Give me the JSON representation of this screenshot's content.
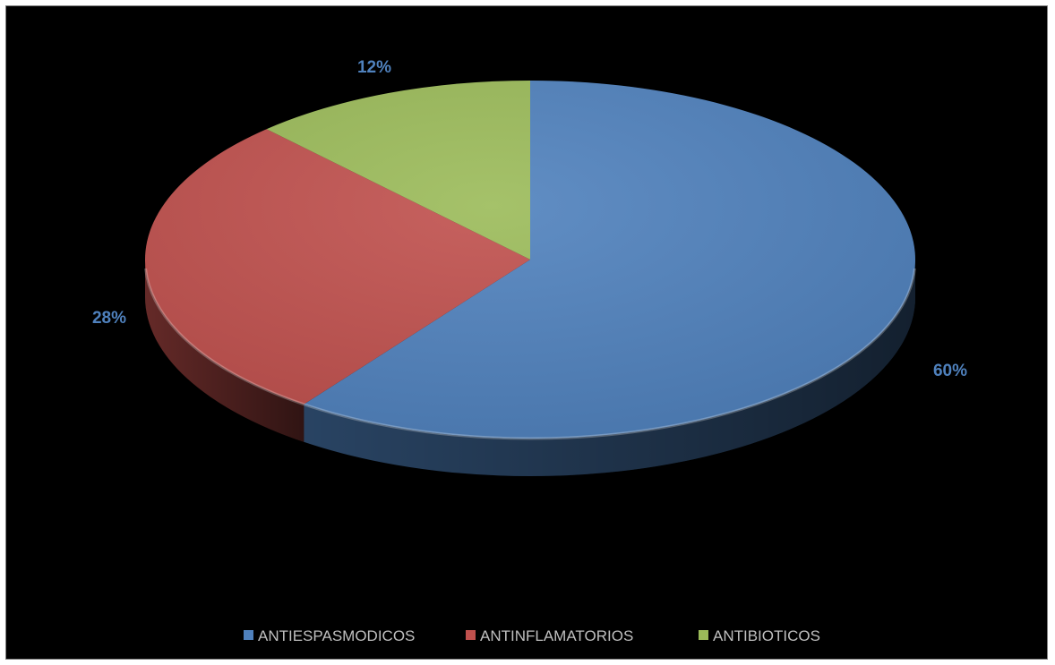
{
  "chart_data": {
    "type": "pie",
    "style": "3d-pie",
    "categories": [
      "ANTIESPASMODICOS",
      "ANTINFLAMATORIOS",
      "ANTIBIOTICOS"
    ],
    "values": [
      60,
      28,
      12
    ],
    "data_labels": [
      "60%",
      "28%",
      "12%"
    ],
    "colors": [
      "#4f81bd",
      "#c0504d",
      "#9bbb59"
    ],
    "label_color": "#4f81bd",
    "background": "#000000",
    "legend_position": "bottom",
    "title": ""
  }
}
